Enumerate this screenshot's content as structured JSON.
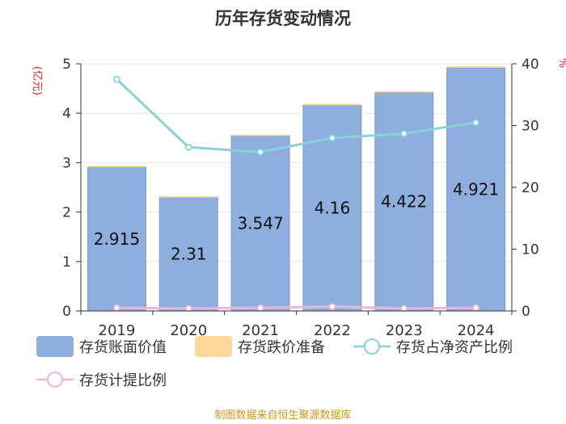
{
  "chart_data": {
    "type": "bar",
    "title": "历年存货变动情况",
    "categories": [
      "2019",
      "2020",
      "2021",
      "2022",
      "2023",
      "2024"
    ],
    "y_left": {
      "label": "(亿元)",
      "ticks": [
        0,
        1,
        2,
        3,
        4,
        5
      ],
      "ylim": [
        0,
        5
      ]
    },
    "y_right": {
      "label": "%",
      "ticks": [
        0,
        10,
        20,
        30,
        40
      ],
      "ylim": [
        0,
        40
      ]
    },
    "series": [
      {
        "name": "存货账面价值",
        "kind": "bar",
        "axis": "left",
        "color": "#8eaedd",
        "values": [
          2.915,
          2.31,
          3.547,
          4.16,
          4.422,
          4.921
        ],
        "labels": [
          "2.915",
          "2.31",
          "3.547",
          "4.16",
          "4.422",
          "4.921"
        ]
      },
      {
        "name": "存货跌价准备",
        "kind": "bar",
        "axis": "left",
        "color": "#fdd89a",
        "values": [
          0.02,
          0.01,
          0.02,
          0.03,
          0.02,
          0.03
        ]
      },
      {
        "name": "存货占净资产比例",
        "kind": "line",
        "axis": "right",
        "color": "#86d4d8",
        "values": [
          37.5,
          26.5,
          25.7,
          28.0,
          28.7,
          30.5
        ]
      },
      {
        "name": "存货计提比例",
        "kind": "line",
        "axis": "right",
        "color": "#e8b8dc",
        "values": [
          0.5,
          0.4,
          0.5,
          0.7,
          0.4,
          0.5
        ]
      }
    ],
    "grid": true,
    "legend_position": "bottom"
  },
  "footer": "制图数据来自恒生聚源数据库"
}
